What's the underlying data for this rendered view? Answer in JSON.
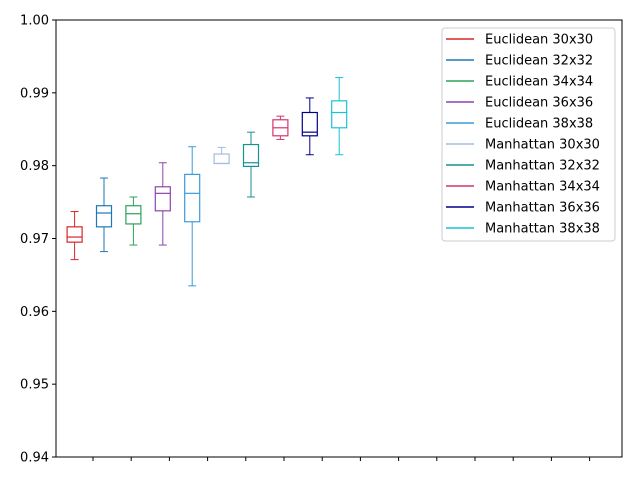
{
  "chart_data": {
    "type": "box",
    "title": "",
    "xlabel": "",
    "ylabel": "",
    "ylim": [
      0.94,
      1.0
    ],
    "yticks": [
      0.94,
      0.95,
      0.96,
      0.97,
      0.98,
      0.99,
      1.0
    ],
    "ytick_labels": [
      "0.94",
      "0.95",
      "0.96",
      "0.97",
      "0.98",
      "0.99",
      "1.00"
    ],
    "x_tick_count": 14,
    "grid": false,
    "legend_position": "top-right",
    "series": [
      {
        "name": "Euclidean 30x30",
        "color": "#d62728",
        "min": 0.9671,
        "q1": 0.9695,
        "median": 0.9702,
        "q3": 0.9716,
        "max": 0.9737
      },
      {
        "name": "Euclidean 32x32",
        "color": "#1f77b4",
        "min": 0.9682,
        "q1": 0.9716,
        "median": 0.9735,
        "q3": 0.9745,
        "max": 0.9783
      },
      {
        "name": "Euclidean 34x34",
        "color": "#2ca05a",
        "min": 0.9691,
        "q1": 0.972,
        "median": 0.9734,
        "q3": 0.9745,
        "max": 0.9757
      },
      {
        "name": "Euclidean 36x36",
        "color": "#8e44ad",
        "min": 0.9691,
        "q1": 0.9738,
        "median": 0.9762,
        "q3": 0.9771,
        "max": 0.9804
      },
      {
        "name": "Euclidean 38x38",
        "color": "#3a9bd9",
        "min": 0.9635,
        "q1": 0.9723,
        "median": 0.9762,
        "q3": 0.9788,
        "max": 0.9826
      },
      {
        "name": "Manhattan 30x30",
        "color": "#a3bde0",
        "min": 0.9803,
        "q1": 0.9803,
        "median": 0.9803,
        "q3": 0.9816,
        "max": 0.9825
      },
      {
        "name": "Manhattan 32x32",
        "color": "#17928f",
        "min": 0.9757,
        "q1": 0.9799,
        "median": 0.9804,
        "q3": 0.9829,
        "max": 0.9846
      },
      {
        "name": "Manhattan 34x34",
        "color": "#d6336c",
        "min": 0.9836,
        "q1": 0.9841,
        "median": 0.9852,
        "q3": 0.9863,
        "max": 0.9868
      },
      {
        "name": "Manhattan 36x36",
        "color": "#00008b",
        "min": 0.9815,
        "q1": 0.9841,
        "median": 0.9846,
        "q3": 0.9873,
        "max": 0.9893
      },
      {
        "name": "Manhattan 38x38",
        "color": "#17c3d6",
        "min": 0.9815,
        "q1": 0.9852,
        "median": 0.9873,
        "q3": 0.9889,
        "max": 0.9921
      }
    ]
  }
}
